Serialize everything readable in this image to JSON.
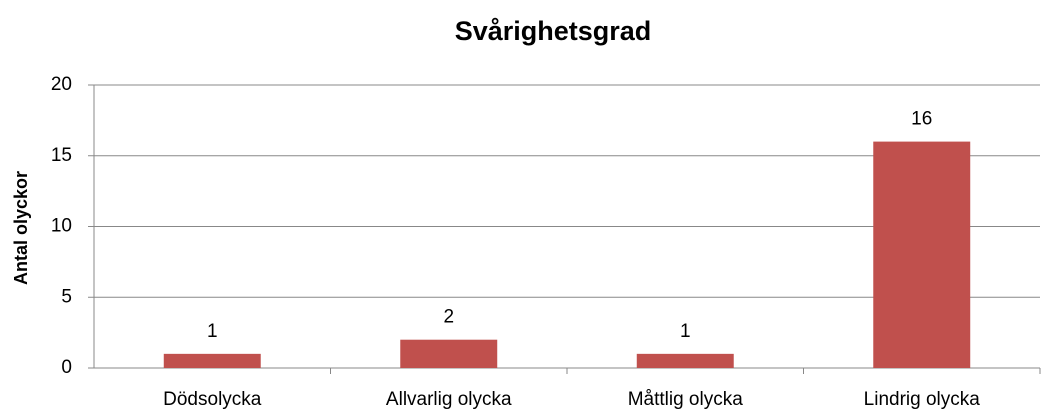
{
  "chart_data": {
    "type": "bar",
    "title": "Svårighetsgrad",
    "y_label": "Antal olyckor",
    "categories": [
      "Dödsolycka",
      "Allvarlig olycka",
      "Måttlig olycka",
      "Lindrig olycka"
    ],
    "values": [
      1,
      2,
      1,
      16
    ],
    "color": "#c0504d",
    "ylim": [
      0,
      20
    ],
    "yticks": [
      0,
      5,
      10,
      15,
      20
    ],
    "grid": true
  }
}
